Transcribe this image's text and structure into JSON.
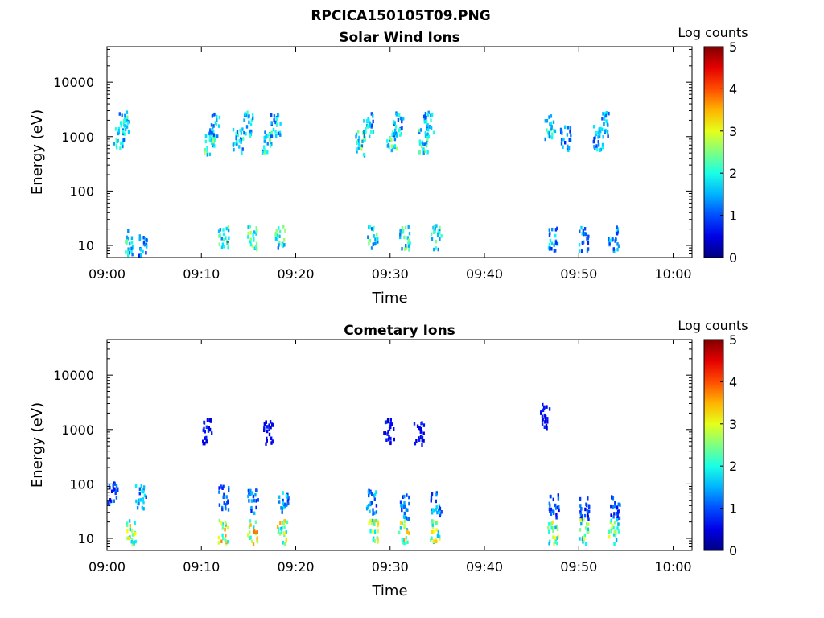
{
  "figure_title": "RPCICA150105T09.PNG",
  "chart_data": [
    {
      "type": "heatmap",
      "title": "Solar Wind Ions",
      "xlabel": "Time",
      "ylabel": "Energy (eV)",
      "yscale": "log",
      "ylim": [
        6,
        45000
      ],
      "xlim_minutes": [
        0,
        62
      ],
      "x_ticks": [
        "09:00",
        "09:10",
        "09:20",
        "09:30",
        "09:40",
        "09:50",
        "10:00"
      ],
      "y_ticks": [
        "10",
        "100",
        "1000",
        "10000"
      ],
      "colorbar": {
        "label": "Log counts",
        "ticks": [
          "0",
          "1",
          "2",
          "3",
          "4",
          "5"
        ],
        "range": [
          0,
          5
        ],
        "colormap": "jet"
      },
      "bursts": [
        {
          "t": 1.2,
          "e": 1000,
          "c": 2.3
        },
        {
          "t": 1.7,
          "e": 1800,
          "c": 2.1
        },
        {
          "t": 2.3,
          "e": 12,
          "c": 2.2
        },
        {
          "t": 3.6,
          "e": 10,
          "c": 1.6
        },
        {
          "t": 10.8,
          "e": 800,
          "c": 2.5
        },
        {
          "t": 11.3,
          "e": 1800,
          "c": 2.0
        },
        {
          "t": 12.3,
          "e": 15,
          "c": 2.4
        },
        {
          "t": 13.8,
          "e": 900,
          "c": 2.2
        },
        {
          "t": 14.8,
          "e": 1800,
          "c": 2.0
        },
        {
          "t": 15.3,
          "e": 15,
          "c": 2.6
        },
        {
          "t": 16.9,
          "e": 900,
          "c": 2.3
        },
        {
          "t": 17.8,
          "e": 1800,
          "c": 2.1
        },
        {
          "t": 18.3,
          "e": 15,
          "c": 2.5
        },
        {
          "t": 26.8,
          "e": 800,
          "c": 2.6
        },
        {
          "t": 27.6,
          "e": 1800,
          "c": 2.0
        },
        {
          "t": 28.1,
          "e": 15,
          "c": 2.5
        },
        {
          "t": 30.1,
          "e": 800,
          "c": 2.5
        },
        {
          "t": 30.8,
          "e": 1800,
          "c": 2.0
        },
        {
          "t": 31.5,
          "e": 15,
          "c": 2.6
        },
        {
          "t": 33.4,
          "e": 900,
          "c": 2.4
        },
        {
          "t": 34.0,
          "e": 1800,
          "c": 2.0
        },
        {
          "t": 34.8,
          "e": 15,
          "c": 2.3
        },
        {
          "t": 46.9,
          "e": 1600,
          "c": 2.2
        },
        {
          "t": 47.2,
          "e": 14,
          "c": 1.8
        },
        {
          "t": 48.5,
          "e": 1000,
          "c": 1.7
        },
        {
          "t": 50.4,
          "e": 14,
          "c": 1.7
        },
        {
          "t": 52.0,
          "e": 1000,
          "c": 1.9
        },
        {
          "t": 52.6,
          "e": 1800,
          "c": 1.8
        },
        {
          "t": 53.6,
          "e": 14,
          "c": 1.7
        }
      ]
    },
    {
      "type": "heatmap",
      "title": "Cometary Ions",
      "xlabel": "Time",
      "ylabel": "Energy (eV)",
      "yscale": "log",
      "ylim": [
        6,
        45000
      ],
      "xlim_minutes": [
        0,
        62
      ],
      "x_ticks": [
        "09:00",
        "09:10",
        "09:20",
        "09:30",
        "09:40",
        "09:50",
        "10:00"
      ],
      "y_ticks": [
        "10",
        "100",
        "1000",
        "10000"
      ],
      "colorbar": {
        "label": "Log counts",
        "ticks": [
          "0",
          "1",
          "2",
          "3",
          "4",
          "5"
        ],
        "range": [
          0,
          5
        ],
        "colormap": "jet"
      },
      "bursts": [
        {
          "t": 0.6,
          "e": 70,
          "c": 1.2
        },
        {
          "t": 2.5,
          "e": 14,
          "c": 3.2
        },
        {
          "t": 3.5,
          "e": 60,
          "c": 1.9
        },
        {
          "t": 10.6,
          "e": 1000,
          "c": 0.8
        },
        {
          "t": 12.3,
          "e": 60,
          "c": 1.3
        },
        {
          "t": 12.2,
          "e": 14,
          "c": 3.4
        },
        {
          "t": 15.4,
          "e": 50,
          "c": 1.5
        },
        {
          "t": 15.3,
          "e": 14,
          "c": 3.5
        },
        {
          "t": 17.0,
          "e": 900,
          "c": 0.8
        },
        {
          "t": 18.6,
          "e": 45,
          "c": 1.8
        },
        {
          "t": 18.5,
          "e": 14,
          "c": 3.3
        },
        {
          "t": 28.0,
          "e": 50,
          "c": 1.6
        },
        {
          "t": 28.1,
          "e": 14,
          "c": 3.5
        },
        {
          "t": 29.8,
          "e": 1000,
          "c": 0.8
        },
        {
          "t": 31.5,
          "e": 40,
          "c": 1.5
        },
        {
          "t": 31.4,
          "e": 14,
          "c": 3.3
        },
        {
          "t": 33.0,
          "e": 900,
          "c": 0.8
        },
        {
          "t": 34.8,
          "e": 45,
          "c": 1.6
        },
        {
          "t": 34.7,
          "e": 14,
          "c": 3.2
        },
        {
          "t": 46.4,
          "e": 1900,
          "c": 0.8
        },
        {
          "t": 47.3,
          "e": 40,
          "c": 1.2
        },
        {
          "t": 47.2,
          "e": 14,
          "c": 3.0
        },
        {
          "t": 50.5,
          "e": 35,
          "c": 1.1
        },
        {
          "t": 50.4,
          "e": 14,
          "c": 2.9
        },
        {
          "t": 53.8,
          "e": 40,
          "c": 1.2
        },
        {
          "t": 53.6,
          "e": 14,
          "c": 2.9
        }
      ]
    }
  ]
}
